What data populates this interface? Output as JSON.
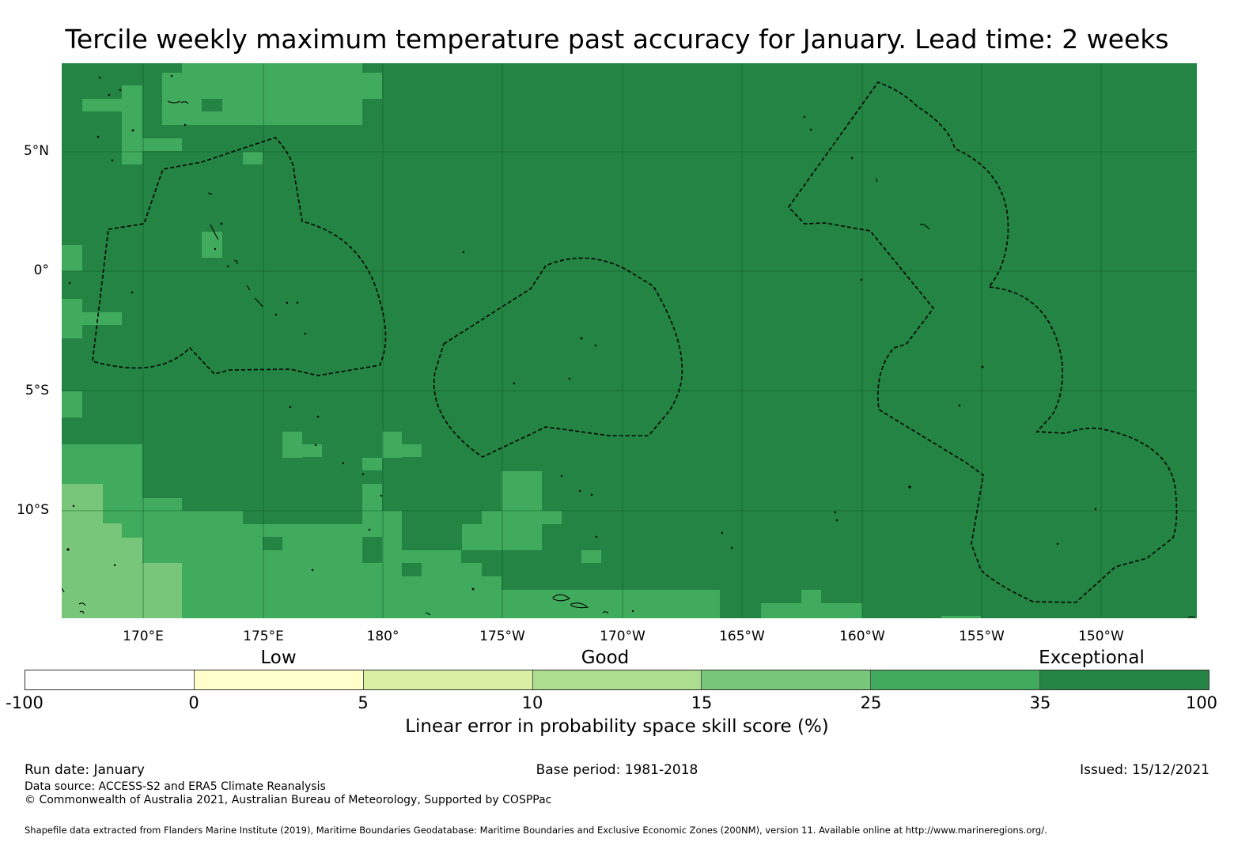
{
  "title": "Tercile weekly maximum temperature past accuracy for January. Lead time: 2 weeks",
  "map": {
    "ocean_color": "#238443",
    "lat_labels": [
      "5°N",
      "0°",
      "5°S",
      "10°S"
    ],
    "lon_labels": [
      "170°E",
      "175°E",
      "180°",
      "175°W",
      "170°W",
      "165°W",
      "160°W",
      "155°W",
      "150°W"
    ],
    "icons": [
      "eez-boundary-dashed",
      "coastline"
    ]
  },
  "categories": {
    "low": "Low",
    "good": "Good",
    "exceptional": "Exceptional"
  },
  "colorbar": {
    "ticks": [
      "-100",
      "0",
      "5",
      "10",
      "15",
      "25",
      "35",
      "100"
    ],
    "colors": [
      "#ffffff",
      "#ffffcc",
      "#d9f0a3",
      "#addd8e",
      "#78c679",
      "#41ab5d",
      "#238443"
    ],
    "label": "Linear error in probability space skill score (%)"
  },
  "footer": {
    "run_date": "Run date: January",
    "base_period": "Base period: 1981-2018",
    "issued": "Issued: 15/12/2021",
    "data_source": "Data source: ACCESS-S2 and ERA5 Climate Reanalysis",
    "copyright": "© Commonwealth of Australia 2021, Australian Bureau of Meteorology, Supported by COSPPac",
    "shapefile": "Shapefile data extracted from Flanders Marine Institute (2019), Maritime Boundaries Geodatabase: Maritime Boundaries and Exclusive Economic Zones (200NM), version 11. Available online at http://www.marineregions.org/."
  }
}
